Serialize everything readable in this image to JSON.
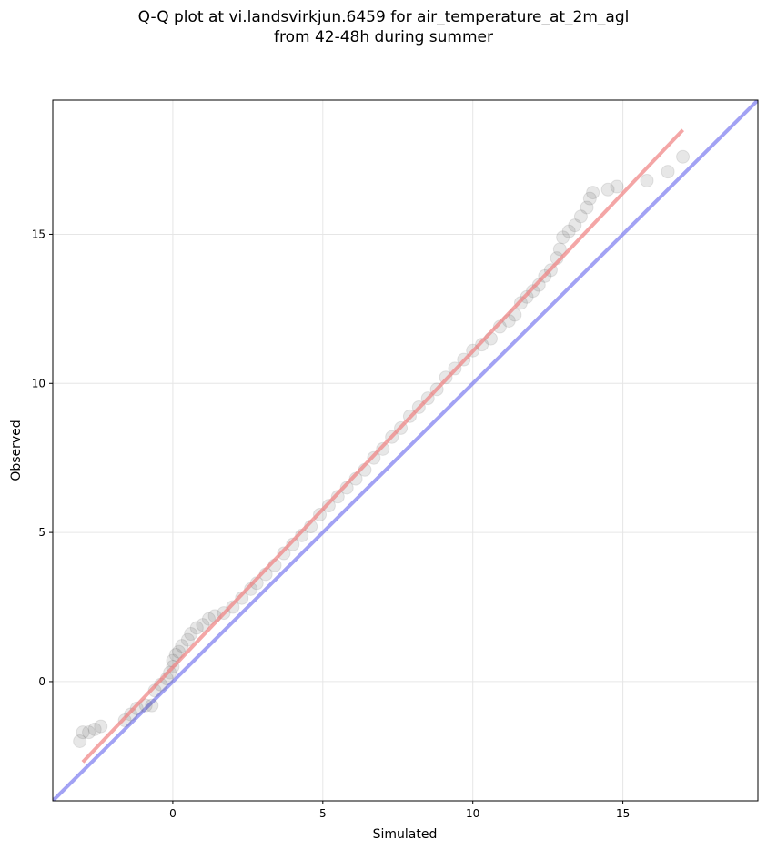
{
  "chart_data": {
    "type": "scatter",
    "title_lines": [
      "Q-Q plot at vi.landsvirkjun.6459 for air_temperature_at_2m_agl",
      "from 42-48h during summer"
    ],
    "xlabel": "Simulated",
    "ylabel": "Observed",
    "xlim": [
      -4.0,
      19.5
    ],
    "ylim": [
      -4.0,
      19.5
    ],
    "x_ticks": [
      0,
      5,
      10,
      15
    ],
    "y_ticks": [
      0,
      5,
      10,
      15
    ],
    "grid": true,
    "reference_line": {
      "label": "1:1",
      "color": "#7b7bef",
      "points": [
        [
          -4.0,
          -4.0
        ],
        [
          19.5,
          19.5
        ]
      ]
    },
    "fit_line": {
      "color": "#f08080",
      "points": [
        [
          -3.0,
          -2.7
        ],
        [
          17.0,
          18.5
        ]
      ]
    },
    "point_color": "#444444",
    "points": [
      [
        -3.1,
        -2.0
      ],
      [
        -3.0,
        -1.7
      ],
      [
        -2.8,
        -1.7
      ],
      [
        -2.6,
        -1.6
      ],
      [
        -2.4,
        -1.5
      ],
      [
        -1.6,
        -1.3
      ],
      [
        -1.4,
        -1.1
      ],
      [
        -1.2,
        -0.9
      ],
      [
        -0.9,
        -0.8
      ],
      [
        -0.7,
        -0.8
      ],
      [
        -0.6,
        -0.3
      ],
      [
        -0.4,
        -0.1
      ],
      [
        -0.2,
        0.1
      ],
      [
        -0.1,
        0.3
      ],
      [
        0.0,
        0.5
      ],
      [
        0.0,
        0.7
      ],
      [
        0.1,
        0.9
      ],
      [
        0.2,
        1.0
      ],
      [
        0.3,
        1.2
      ],
      [
        0.5,
        1.4
      ],
      [
        0.6,
        1.6
      ],
      [
        0.8,
        1.8
      ],
      [
        1.0,
        1.9
      ],
      [
        1.2,
        2.1
      ],
      [
        1.4,
        2.2
      ],
      [
        1.7,
        2.3
      ],
      [
        2.0,
        2.5
      ],
      [
        2.3,
        2.8
      ],
      [
        2.6,
        3.1
      ],
      [
        2.8,
        3.3
      ],
      [
        3.1,
        3.6
      ],
      [
        3.4,
        3.9
      ],
      [
        3.7,
        4.3
      ],
      [
        4.0,
        4.6
      ],
      [
        4.3,
        4.9
      ],
      [
        4.6,
        5.2
      ],
      [
        4.9,
        5.6
      ],
      [
        5.2,
        5.9
      ],
      [
        5.5,
        6.2
      ],
      [
        5.8,
        6.5
      ],
      [
        6.1,
        6.8
      ],
      [
        6.4,
        7.1
      ],
      [
        6.7,
        7.5
      ],
      [
        7.0,
        7.8
      ],
      [
        7.3,
        8.2
      ],
      [
        7.6,
        8.5
      ],
      [
        7.9,
        8.9
      ],
      [
        8.2,
        9.2
      ],
      [
        8.5,
        9.5
      ],
      [
        8.8,
        9.8
      ],
      [
        9.1,
        10.2
      ],
      [
        9.4,
        10.5
      ],
      [
        9.7,
        10.8
      ],
      [
        10.0,
        11.1
      ],
      [
        10.3,
        11.3
      ],
      [
        10.6,
        11.5
      ],
      [
        10.9,
        11.9
      ],
      [
        11.2,
        12.1
      ],
      [
        11.4,
        12.3
      ],
      [
        11.6,
        12.7
      ],
      [
        11.8,
        12.9
      ],
      [
        12.0,
        13.1
      ],
      [
        12.2,
        13.3
      ],
      [
        12.4,
        13.6
      ],
      [
        12.6,
        13.8
      ],
      [
        12.8,
        14.2
      ],
      [
        12.9,
        14.5
      ],
      [
        13.0,
        14.9
      ],
      [
        13.2,
        15.1
      ],
      [
        13.4,
        15.3
      ],
      [
        13.6,
        15.6
      ],
      [
        13.8,
        15.9
      ],
      [
        13.9,
        16.2
      ],
      [
        14.0,
        16.4
      ],
      [
        14.5,
        16.5
      ],
      [
        14.8,
        16.6
      ],
      [
        15.8,
        16.8
      ],
      [
        16.5,
        17.1
      ],
      [
        17.0,
        17.6
      ]
    ]
  }
}
